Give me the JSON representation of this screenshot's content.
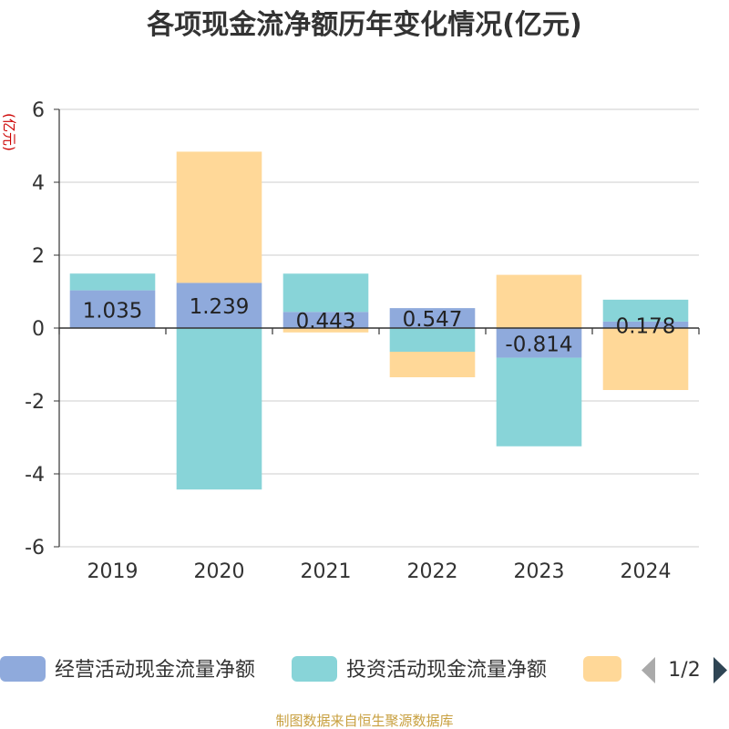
{
  "chart_data": {
    "type": "bar",
    "stacked": true,
    "title": "各项现金流净额历年变化情况(亿元)",
    "ylabel": "(亿元)",
    "xlabel": "",
    "categories": [
      "2019",
      "2020",
      "2021",
      "2022",
      "2023",
      "2024"
    ],
    "ylim": [
      -6,
      6
    ],
    "yticks": [
      -6,
      -4,
      -2,
      0,
      2,
      4,
      6
    ],
    "grid": true,
    "legend_position": "bottom",
    "series": [
      {
        "name": "经营活动现金流量净额",
        "color": "#8faadc",
        "values": [
          1.035,
          1.239,
          0.443,
          0.547,
          -0.814,
          0.178
        ],
        "labels": [
          "1.035",
          "1.239",
          "0.443",
          "0.547",
          "-0.814",
          "0.178"
        ]
      },
      {
        "name": "投资活动现金流量净额",
        "color": "#88d4d8",
        "values": [
          0.46,
          -4.43,
          1.05,
          -0.65,
          -2.43,
          0.6
        ]
      },
      {
        "name": "",
        "color": "#ffd898",
        "values": [
          0.0,
          3.6,
          -0.12,
          -0.7,
          1.46,
          -1.7
        ]
      }
    ]
  },
  "legend": {
    "page": "1/2"
  },
  "source": "制图数据来自恒生聚源数据库"
}
